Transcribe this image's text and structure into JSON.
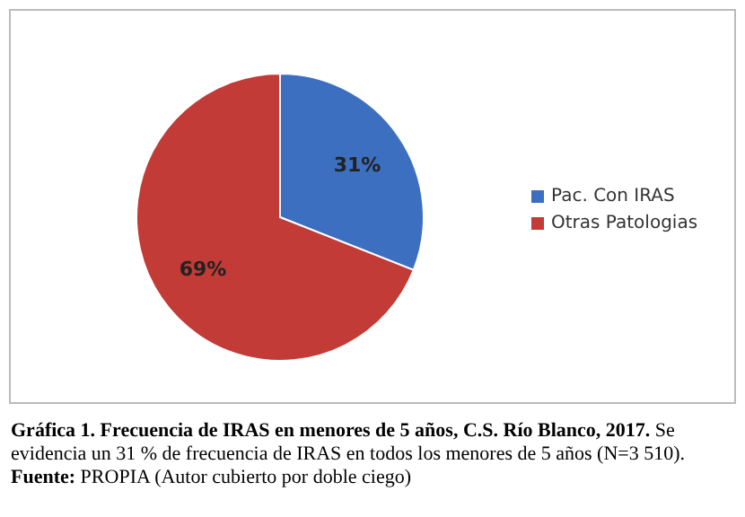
{
  "chart_data": {
    "type": "pie",
    "title": "Gráfica 1. Frecuencia de IRAS en menores de 5 años, C.S. Río Blanco, 2017.",
    "annotations": [
      "Se evidencia un 31 % de frecuencia de IRAS en todos los menores de 5 años (N=3 510).",
      "Fuente: PROPIA (Autor cubierto por doble ciego)"
    ],
    "categories": [
      "Pac. Con IRAS",
      "Otras Patologias"
    ],
    "values": [
      31,
      69
    ],
    "colors": [
      "#3d6fc0",
      "#c23b36"
    ],
    "value_labels": [
      "31%",
      "69%"
    ],
    "legend": "right"
  }
}
